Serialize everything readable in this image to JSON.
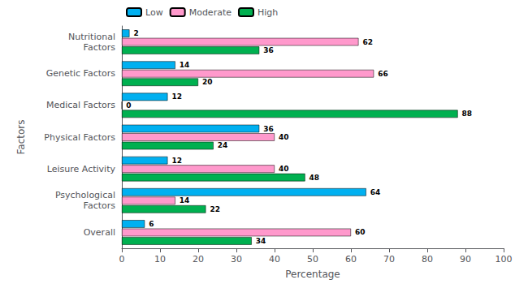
{
  "chart_data": {
    "type": "bar",
    "orientation": "horizontal",
    "categories": [
      "Nutritional\nFactors",
      "Genetic Factors",
      "Medical Factors",
      "Physical Factors",
      "Leisure Activity",
      "Psychological\nFactors",
      "Overall"
    ],
    "series": [
      {
        "name": "Low",
        "color": "#00b0f0",
        "values": [
          2,
          14,
          12,
          36,
          12,
          64,
          6
        ]
      },
      {
        "name": "Moderate",
        "color": "#ff99cc",
        "values": [
          62,
          66,
          0,
          40,
          40,
          14,
          60
        ]
      },
      {
        "name": "High",
        "color": "#00b050",
        "values": [
          36,
          20,
          88,
          24,
          48,
          22,
          34
        ]
      }
    ],
    "xlim": [
      0,
      100
    ],
    "xticks": [
      0,
      10,
      20,
      30,
      40,
      50,
      60,
      70,
      80,
      90,
      100
    ],
    "xlabel": "Percentage",
    "ylabel": "Factors",
    "legend": "upper left",
    "data_labels": true,
    "grid": false
  }
}
